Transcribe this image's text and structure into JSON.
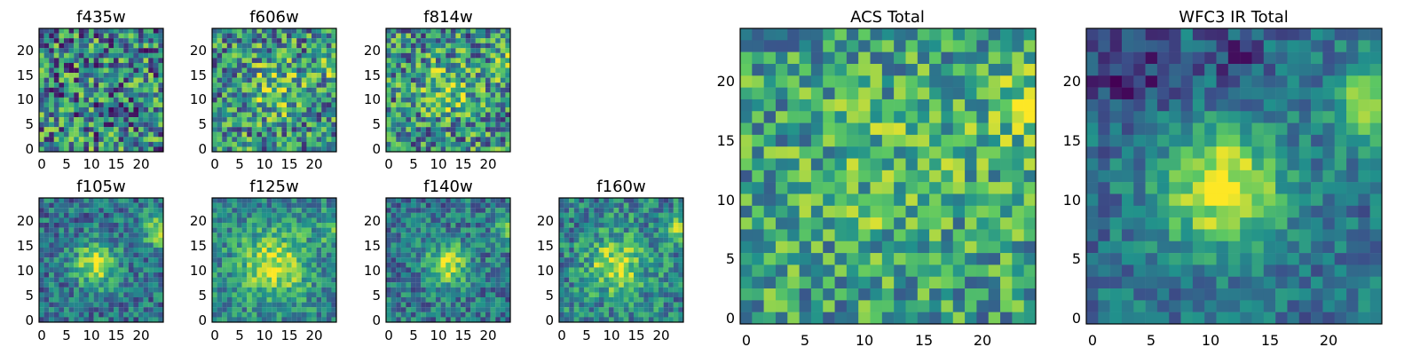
{
  "figure": {
    "kind": "image-grid"
  },
  "chart_data": [
    {
      "type": "heatmap",
      "title": "f435w",
      "xlim": [
        0,
        24
      ],
      "ylim": [
        0,
        24
      ],
      "xticks": [
        0,
        5,
        10,
        15,
        20
      ],
      "yticks": [
        0,
        5,
        10,
        15,
        20
      ],
      "colormap": "viridis",
      "features": "noise"
    },
    {
      "type": "heatmap",
      "title": "f606w",
      "xlim": [
        0,
        24
      ],
      "ylim": [
        0,
        24
      ],
      "xticks": [
        0,
        5,
        10,
        15,
        20
      ],
      "yticks": [
        0,
        5,
        10,
        15,
        20
      ],
      "colormap": "viridis",
      "features": "faint source near center (12,12), bright patch at right edge (24,17)"
    },
    {
      "type": "heatmap",
      "title": "f814w",
      "xlim": [
        0,
        24
      ],
      "ylim": [
        0,
        24
      ],
      "xticks": [
        0,
        5,
        10,
        15,
        20
      ],
      "yticks": [
        0,
        5,
        10,
        15,
        20
      ],
      "colormap": "viridis",
      "features": "faint source near center, bright patch at right edge"
    },
    {
      "type": "heatmap",
      "title": "f105w",
      "xlim": [
        0,
        24
      ],
      "ylim": [
        0,
        24
      ],
      "xticks": [
        0,
        5,
        10,
        15,
        20
      ],
      "yticks": [
        0,
        5,
        10,
        15,
        20
      ],
      "colormap": "viridis",
      "features": "source at (11,11), bright patch at right edge (24,18)"
    },
    {
      "type": "heatmap",
      "title": "f125w",
      "xlim": [
        0,
        24
      ],
      "ylim": [
        0,
        24
      ],
      "xticks": [
        0,
        5,
        10,
        15,
        20
      ],
      "yticks": [
        0,
        5,
        10,
        15,
        20
      ],
      "colormap": "viridis",
      "features": "broad source near (12,11)"
    },
    {
      "type": "heatmap",
      "title": "f140w",
      "xlim": [
        0,
        24
      ],
      "ylim": [
        0,
        24
      ],
      "xticks": [
        0,
        5,
        10,
        15,
        20
      ],
      "yticks": [
        0,
        5,
        10,
        15,
        20
      ],
      "colormap": "viridis",
      "features": "source at (12,11), bright patch at right edge"
    },
    {
      "type": "heatmap",
      "title": "f160w",
      "xlim": [
        0,
        24
      ],
      "ylim": [
        0,
        24
      ],
      "xticks": [
        0,
        5,
        10,
        15,
        20
      ],
      "yticks": [
        0,
        5,
        10,
        15,
        20
      ],
      "colormap": "viridis",
      "features": "source at (11,11), bright patch at right edge"
    },
    {
      "type": "heatmap",
      "title": "ACS Total",
      "xlim": [
        0,
        24
      ],
      "ylim": [
        0,
        24
      ],
      "xticks": [
        0,
        5,
        10,
        15,
        20
      ],
      "yticks": [
        0,
        5,
        10,
        15,
        20
      ],
      "colormap": "viridis",
      "features": "noisy, slight brightening at center and right edge (24,18)"
    },
    {
      "type": "heatmap",
      "title": "WFC3 IR Total",
      "xlim": [
        0,
        24
      ],
      "ylim": [
        0,
        24
      ],
      "xticks": [
        0,
        5,
        10,
        15,
        20
      ],
      "yticks": [
        0,
        5,
        10,
        15,
        20
      ],
      "colormap": "viridis",
      "features": "bright source at (11,11), bright patch at right edge (24,18), dark patches upper-left"
    }
  ],
  "colors": {
    "low": "#440154",
    "mid": "#21918c",
    "high": "#fde725"
  }
}
